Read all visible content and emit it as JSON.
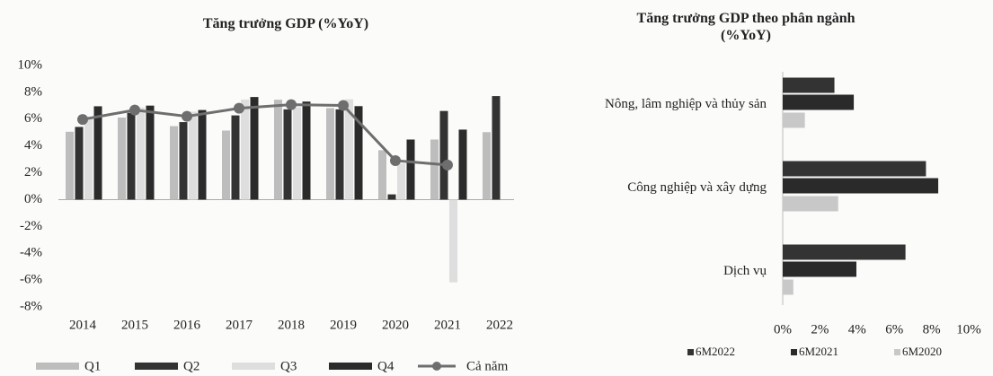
{
  "chart_data": [
    {
      "type": "bar",
      "title": "Tăng trưởng GDP (%YoY)",
      "categories": [
        "2014",
        "2015",
        "2016",
        "2017",
        "2018",
        "2019",
        "2020",
        "2021",
        "2022"
      ],
      "series": [
        {
          "name": "Q1",
          "color": "#bdbdbd",
          "values": [
            5.06,
            6.12,
            5.48,
            5.15,
            7.45,
            6.82,
            3.68,
            4.48,
            5.03
          ]
        },
        {
          "name": "Q2",
          "color": "#333333",
          "values": [
            5.42,
            6.47,
            5.78,
            6.28,
            6.73,
            6.73,
            0.39,
            6.61,
            7.72
          ]
        },
        {
          "name": "Q3",
          "color": "#dedede",
          "values": [
            6.19,
            6.87,
            6.56,
            7.46,
            6.88,
            7.48,
            2.69,
            -6.17,
            null
          ]
        },
        {
          "name": "Q4",
          "color": "#2b2b2b",
          "values": [
            6.96,
            7.01,
            6.68,
            7.65,
            7.31,
            6.97,
            4.48,
            5.22,
            null
          ]
        },
        {
          "name": "Cả năm",
          "color": "#6e6e6e",
          "type": "line",
          "values": [
            5.98,
            6.68,
            6.21,
            6.81,
            7.08,
            7.02,
            2.91,
            2.58,
            null
          ]
        }
      ],
      "ylim": [
        -8,
        10
      ],
      "yticks": [
        {
          "value": -8,
          "label": "-8%"
        },
        {
          "value": -6,
          "label": "-6%"
        },
        {
          "value": -4,
          "label": "-4%"
        },
        {
          "value": -2,
          "label": "-2%"
        },
        {
          "value": 0,
          "label": "0%"
        },
        {
          "value": 2,
          "label": "2%"
        },
        {
          "value": 4,
          "label": "4%"
        },
        {
          "value": 6,
          "label": "6%"
        },
        {
          "value": 8,
          "label": "8%"
        },
        {
          "value": 10,
          "label": "10%"
        }
      ],
      "grid": false
    },
    {
      "type": "barh",
      "title": "Tăng trưởng GDP theo phân ngành (%YoY)",
      "categories": [
        "Nông, lâm nghiệp và thủy sản",
        "Công nghiệp và xây dựng",
        "Dịch vụ"
      ],
      "series": [
        {
          "name": "6M2022",
          "color": "#333333",
          "values": [
            2.78,
            7.7,
            6.6
          ]
        },
        {
          "name": "6M2021",
          "color": "#2a2a2a",
          "values": [
            3.82,
            8.36,
            3.96
          ]
        },
        {
          "name": "6M2020",
          "color": "#c8c8c8",
          "values": [
            1.19,
            2.98,
            0.57
          ]
        }
      ],
      "xlim": [
        0,
        10
      ],
      "xticks": [
        {
          "value": 0,
          "label": "0%"
        },
        {
          "value": 2,
          "label": "2%"
        },
        {
          "value": 4,
          "label": "4%"
        },
        {
          "value": 6,
          "label": "6%"
        },
        {
          "value": 8,
          "label": "8%"
        },
        {
          "value": 10,
          "label": "10%"
        }
      ],
      "grid": false
    }
  ]
}
